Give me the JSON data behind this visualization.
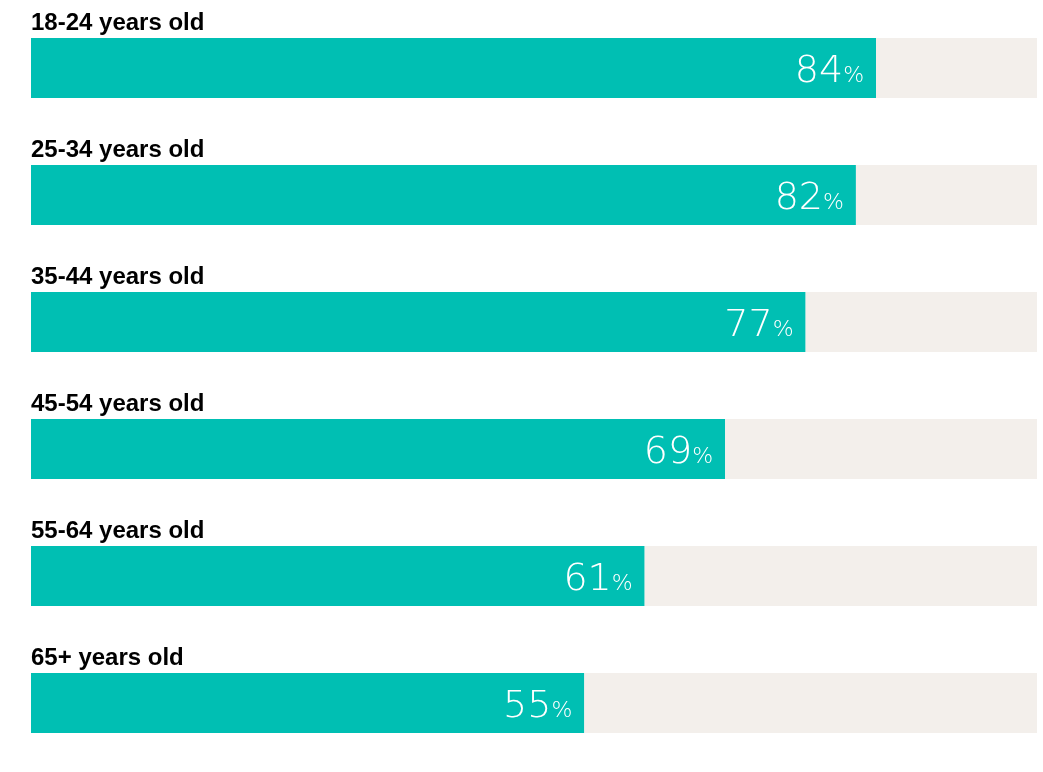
{
  "chart_data": {
    "type": "bar",
    "orientation": "horizontal",
    "stacked": true,
    "categories": [
      "18-24 years old",
      "25-34 years old",
      "35-44 years old",
      "45-54 years old",
      "55-64 years old",
      "65+ years old"
    ],
    "series": [
      {
        "color": "#00bfb3",
        "values": [
          84,
          82,
          77,
          69,
          61,
          55
        ],
        "value_labels": [
          "84%",
          "82%",
          "77%",
          "69%",
          "61%",
          "55%"
        ]
      },
      {
        "color": "#f3efeb",
        "values": [
          16,
          18,
          23,
          31,
          39,
          45
        ]
      }
    ],
    "xlim": [
      0,
      100
    ],
    "tick_labels": false
  }
}
